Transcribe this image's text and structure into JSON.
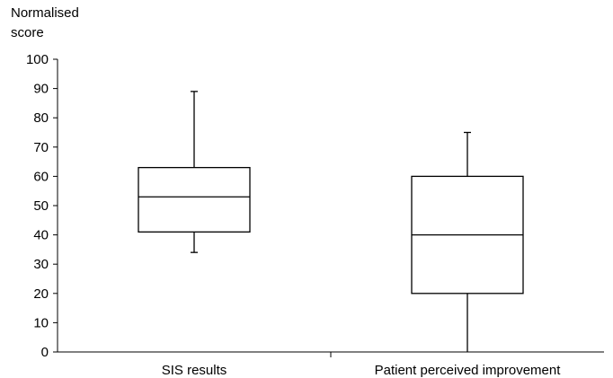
{
  "chart_data": {
    "type": "box",
    "title": "",
    "ylabel_lines": [
      "Normalised",
      "score"
    ],
    "xlabel": "",
    "ylim": [
      0,
      100
    ],
    "yticks": [
      0,
      10,
      20,
      30,
      40,
      50,
      60,
      70,
      80,
      90,
      100
    ],
    "categories": [
      "SIS results",
      "Patient perceived improvement"
    ],
    "boxes": [
      {
        "category": "SIS results",
        "min": 34,
        "q1": 41,
        "median": 53,
        "q3": 63,
        "max": 89
      },
      {
        "category": "Patient perceived improvement",
        "min": 0,
        "q1": 20,
        "median": 40,
        "q3": 60,
        "max": 75
      }
    ],
    "grid": false,
    "legend": "none"
  }
}
